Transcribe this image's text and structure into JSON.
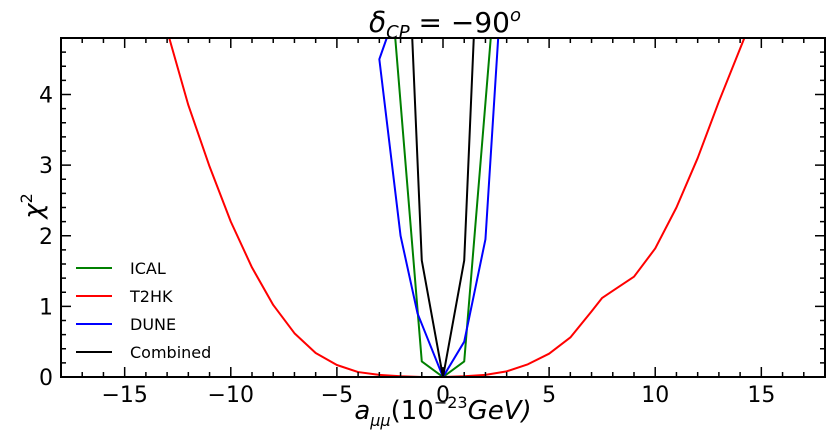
{
  "chart_data": {
    "type": "line",
    "title": "δCP = −90°",
    "title_parts": {
      "delta": "δ",
      "sub": "CP",
      "rest": " = −90",
      "sup": "o"
    },
    "xlabel": "aμμ(10−23GeV)",
    "xlabel_parts": {
      "a": "a",
      "sub": "μμ",
      "pre": "(10",
      "sup": "−23",
      "post": "GeV)"
    },
    "ylabel": "χ2",
    "ylabel_parts": {
      "chi": "χ",
      "sup": "2"
    },
    "xlim": [
      -18,
      18
    ],
    "ylim": [
      0,
      4.8
    ],
    "x_ticks": [
      -15,
      -10,
      -5,
      0,
      5,
      10,
      15
    ],
    "x_tick_labels": [
      "−15",
      "−10",
      "−5",
      "0",
      "5",
      "10",
      "15"
    ],
    "y_ticks": [
      0,
      1,
      2,
      3,
      4
    ],
    "y_tick_labels": [
      "0",
      "1",
      "2",
      "3",
      "4"
    ],
    "grid": false,
    "legend_position": "lower-left",
    "series": [
      {
        "name": "ICAL",
        "color": "#008000",
        "x": [
          -2.25,
          -1.0,
          0.0,
          1.0,
          2.25
        ],
        "y": [
          4.8,
          0.22,
          0.0,
          0.22,
          4.8
        ]
      },
      {
        "name": "T2HK",
        "color": "#ff0000",
        "x": [
          -12.9,
          -12.0,
          -11.0,
          -10.0,
          -9.0,
          -8.0,
          -7.0,
          -6.0,
          -5.0,
          -4.0,
          -3.0,
          -2.0,
          -1.0,
          0.0,
          1.0,
          2.0,
          3.0,
          4.0,
          5.0,
          6.0,
          7.0,
          7.5,
          8.0,
          9.0,
          10.0,
          11.0,
          12.0,
          13.0,
          14.2
        ],
        "y": [
          4.8,
          3.85,
          2.98,
          2.2,
          1.55,
          1.02,
          0.62,
          0.34,
          0.17,
          0.07,
          0.03,
          0.01,
          0.0,
          0.0,
          0.01,
          0.03,
          0.08,
          0.18,
          0.33,
          0.56,
          0.93,
          1.12,
          1.22,
          1.42,
          1.82,
          2.4,
          3.1,
          3.9,
          4.8
        ]
      },
      {
        "name": "DUNE",
        "color": "#0000ff",
        "x": [
          -2.65,
          -3.0,
          -2.0,
          -1.2,
          0.0,
          1.0,
          2.0,
          2.6
        ],
        "y": [
          4.8,
          4.5,
          2.0,
          0.9,
          0.0,
          0.5,
          1.95,
          4.8
        ]
      },
      {
        "name": "Combined",
        "color": "#000000",
        "x": [
          -1.45,
          -1.0,
          0.0,
          1.0,
          1.45
        ],
        "y": [
          4.8,
          1.65,
          0.0,
          1.65,
          4.8
        ]
      }
    ]
  }
}
